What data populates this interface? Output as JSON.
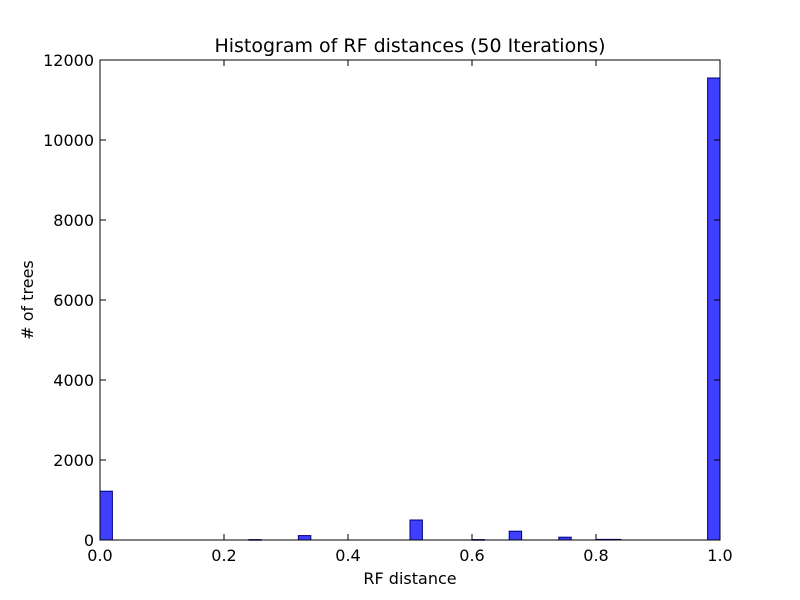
{
  "chart_data": {
    "type": "bar",
    "title": "Histogram of RF distances (50 Iterations)",
    "xlabel": "RF distance",
    "ylabel": "# of trees",
    "xlim": [
      0.0,
      1.0
    ],
    "ylim": [
      0,
      12000
    ],
    "grid": false,
    "bar_color": "#3f3fff",
    "edge_color": "#00007f",
    "bin_width": 0.02,
    "xticks": [
      0.0,
      0.2,
      0.4,
      0.6,
      0.8,
      1.0
    ],
    "xtick_labels": [
      "0.0",
      "0.2",
      "0.4",
      "0.6",
      "0.8",
      "1.0"
    ],
    "yticks": [
      0,
      2000,
      4000,
      6000,
      8000,
      10000,
      12000
    ],
    "ytick_labels": [
      "0",
      "2000",
      "4000",
      "6000",
      "8000",
      "10000",
      "12000"
    ],
    "bins": [
      {
        "x0": 0.0,
        "value": 1220
      },
      {
        "x0": 0.24,
        "value": 10
      },
      {
        "x0": 0.32,
        "value": 110
      },
      {
        "x0": 0.5,
        "value": 500
      },
      {
        "x0": 0.6,
        "value": 10
      },
      {
        "x0": 0.66,
        "value": 220
      },
      {
        "x0": 0.74,
        "value": 70
      },
      {
        "x0": 0.8,
        "value": 15
      },
      {
        "x0": 0.82,
        "value": 15
      },
      {
        "x0": 0.98,
        "value": 11550
      }
    ]
  }
}
